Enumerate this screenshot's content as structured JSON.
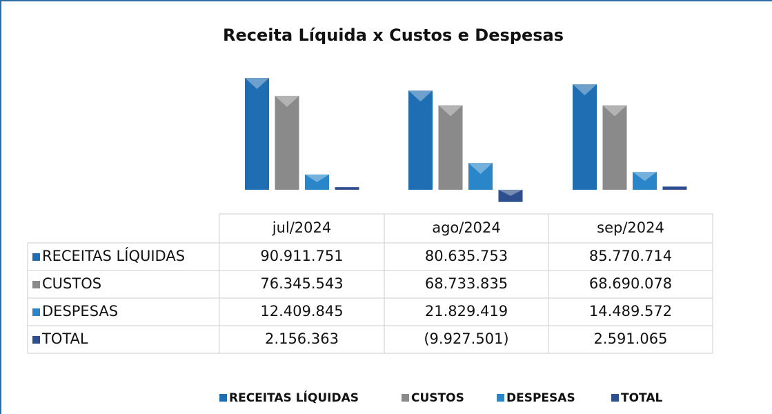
{
  "chart_data": {
    "type": "bar",
    "title": "Receita Líquida x Custos e Despesas",
    "categories": [
      "jul/2024",
      "ago/2024",
      "sep/2024"
    ],
    "series": [
      {
        "name": "RECEITAS LÍQUIDAS",
        "color": "#1f6db3",
        "values": [
          90911751,
          80635753,
          85770714
        ],
        "value_labels": [
          "90.911.751",
          "80.635.753",
          "85.770.714"
        ]
      },
      {
        "name": "CUSTOS",
        "color": "#8a8a8a",
        "values": [
          76345543,
          68733835,
          68690078
        ],
        "value_labels": [
          "76.345.543",
          "68.733.835",
          "68.690.078"
        ]
      },
      {
        "name": "DESPESAS",
        "color": "#2a86c9",
        "values": [
          12409845,
          21829419,
          14489572
        ],
        "value_labels": [
          "12.409.845",
          "21.829.419",
          "14.489.572"
        ]
      },
      {
        "name": "TOTAL",
        "color": "#2e4f8e",
        "values": [
          2156363,
          -9927501,
          2591065
        ],
        "value_labels": [
          "2.156.363",
          "(9.927.501)",
          "2.591.065"
        ]
      }
    ],
    "legend": "bottom"
  }
}
